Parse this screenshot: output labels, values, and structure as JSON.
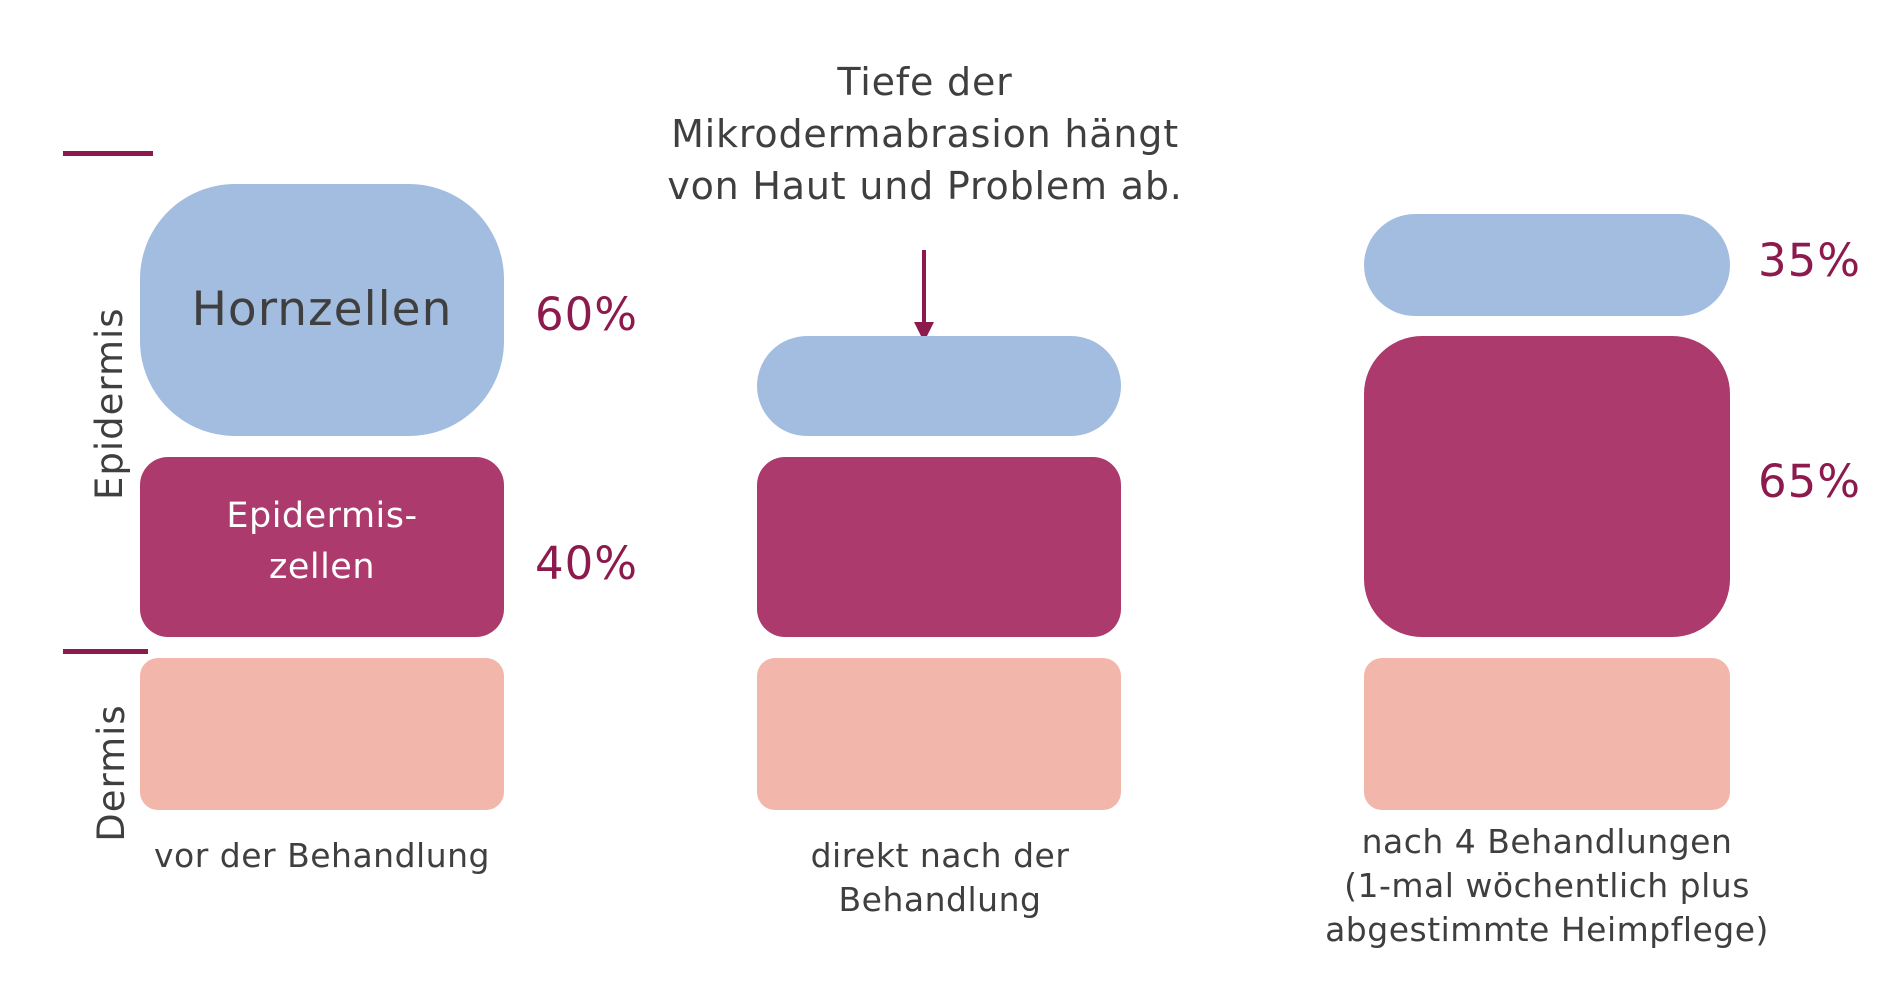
{
  "axis": {
    "epidermis_label": "Epidermis",
    "dermis_label": "Dermis"
  },
  "note": {
    "lines": [
      "Tiefe der",
      "Mikrodermabrasion hängt",
      "von Haut und Problem ab."
    ]
  },
  "columns": [
    {
      "caption_lines": [
        "vor der Behandlung"
      ],
      "horn_label": "Hornzellen",
      "horn_percent": "60%",
      "epi_label_lines": [
        "Epidermis-",
        "zellen"
      ],
      "epi_percent": "40%"
    },
    {
      "caption_lines": [
        "direkt nach der",
        "Behandlung"
      ]
    },
    {
      "caption_lines": [
        "nach 4 Behandlungen",
        "(1-mal wöchentlich plus",
        "abgestimmte Heimpflege)"
      ],
      "horn_percent": "35%",
      "epi_percent": "65%"
    }
  ],
  "colors": {
    "horn": "#a2bde0",
    "epi": "#ad3a6c",
    "derm": "#f2b6aa",
    "accent": "#8c1a4d",
    "text": "#3f3f3f"
  }
}
